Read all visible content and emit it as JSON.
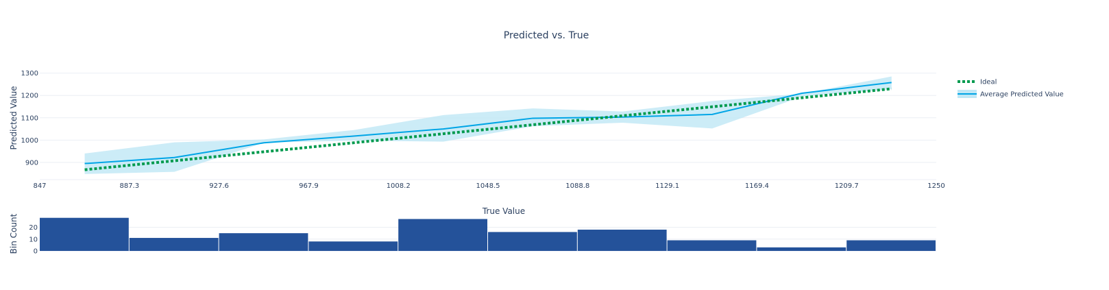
{
  "colors": {
    "ideal": "#009a4e",
    "average": "#00a5e6",
    "band": "#bfe7f5",
    "bins": "#24529a",
    "grid": "#ebeef4",
    "text": "#2a3f5f"
  },
  "chart_data": [
    {
      "type": "line",
      "title": "Predicted vs. True",
      "xlabel": "True Value",
      "ylabel": "Predicted Value",
      "xlim": [
        847,
        1250
      ],
      "ylim": [
        823,
        1345
      ],
      "xticks": [
        "847",
        "887.3",
        "927.6",
        "967.9",
        "1008.2",
        "1048.5",
        "1088.8",
        "1129.1",
        "1169.4",
        "1209.7",
        "1250"
      ],
      "yticks": [
        900,
        1000,
        1100,
        1200,
        1300
      ],
      "legend_position": "right",
      "series": [
        {
          "name": "Ideal",
          "style": "dotted",
          "x": [
            867.2,
            1229.9
          ],
          "y": [
            867.2,
            1229.9
          ]
        },
        {
          "name": "Average Predicted Value",
          "style": "solid",
          "x": [
            867.2,
            907.5,
            947.8,
            988.1,
            1028.4,
            1068.7,
            1109.0,
            1149.3,
            1189.6,
            1229.9
          ],
          "y": [
            895,
            922,
            988,
            1018,
            1050,
            1098,
            1103,
            1115,
            1210,
            1258
          ],
          "upper": [
            940,
            990,
            1003,
            1045,
            1112,
            1142,
            1128,
            1175,
            1208,
            1285
          ],
          "lower": [
            848,
            858,
            988,
            998,
            993,
            1062,
            1078,
            1052,
            1195,
            1228
          ]
        }
      ]
    },
    {
      "type": "bar",
      "xlabel": "",
      "ylabel": "Bin Count",
      "xlim": [
        847,
        1250
      ],
      "ylim": [
        0,
        29
      ],
      "yticks": [
        0,
        10,
        20
      ],
      "bin_edges": [
        847,
        887.3,
        927.6,
        967.9,
        1008.2,
        1048.5,
        1088.8,
        1129.1,
        1169.4,
        1209.7,
        1250
      ],
      "values": [
        28,
        11,
        15,
        8,
        27,
        16,
        18,
        9,
        3,
        9
      ]
    }
  ]
}
